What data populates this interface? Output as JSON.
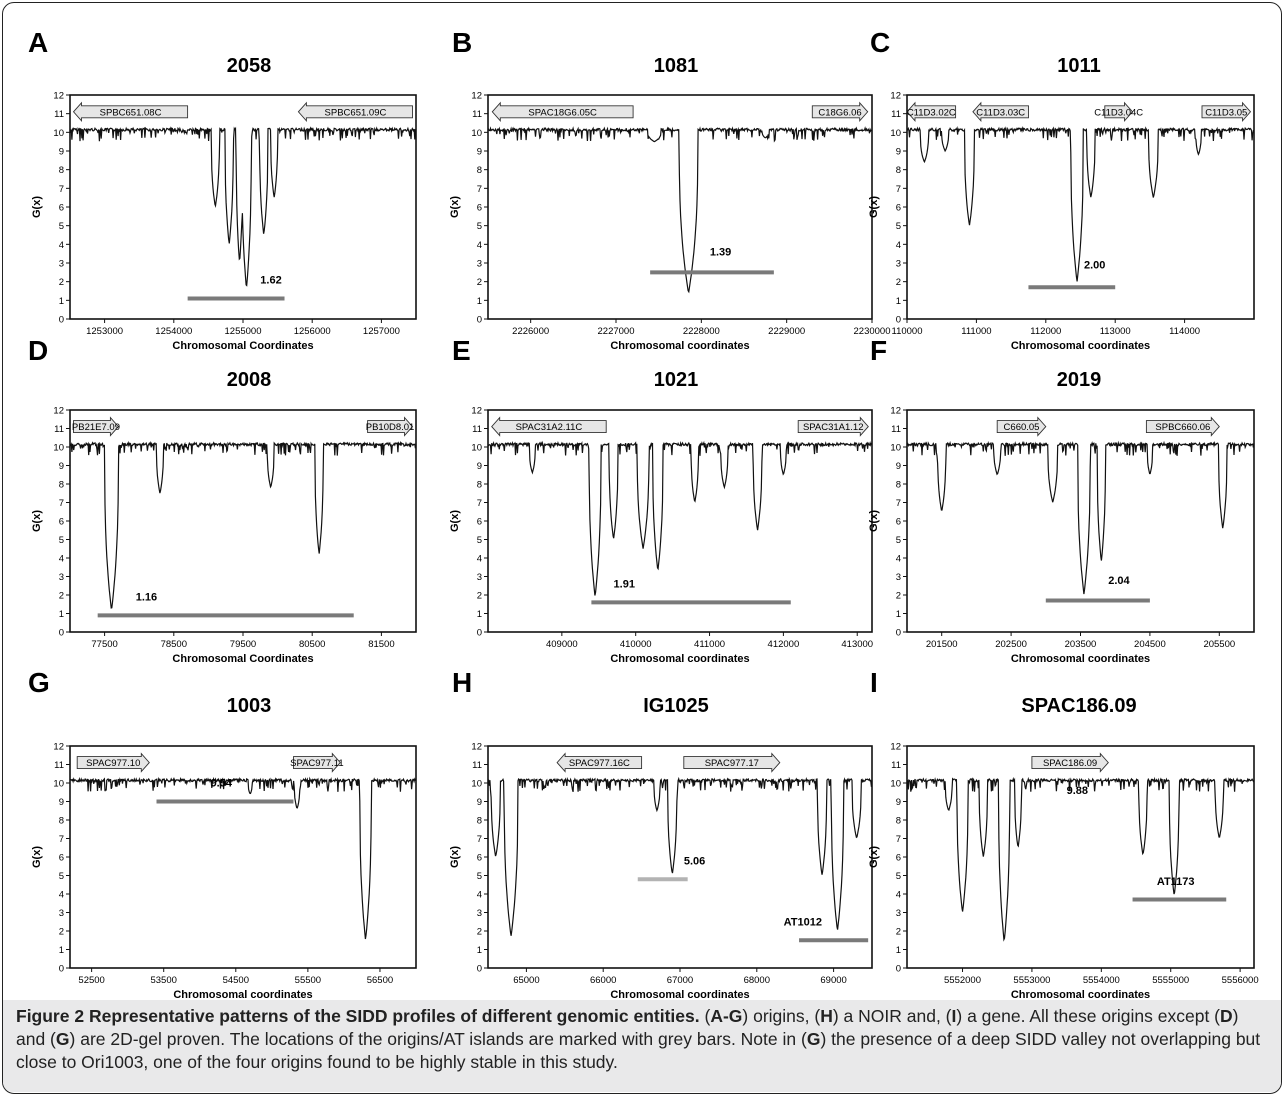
{
  "caption": {
    "label": "Figure 2",
    "title": "Representative patterns of the SIDD profiles of different genomic entities.",
    "segments": [
      {
        "t": " ("
      },
      {
        "t": "A-G",
        "b": true
      },
      {
        "t": ") origins, ("
      },
      {
        "t": "H",
        "b": true
      },
      {
        "t": ") a NOIR and, ("
      },
      {
        "t": "I",
        "b": true
      },
      {
        "t": ") a gene. All these origins except ("
      },
      {
        "t": "D",
        "b": true
      },
      {
        "t": ") and ("
      },
      {
        "t": "G",
        "b": true
      },
      {
        "t": ") are 2D-gel proven. The locations of the origins/AT islands are marked with grey bars. Note in ("
      },
      {
        "t": "G",
        "b": true
      },
      {
        "t": ") the presence of a deep SIDD valley not overlapping but close to Ori1003, one of the four origins found to be highly stable in this study."
      }
    ]
  },
  "colors": {
    "line": "#111111",
    "bar": "#7a7a7a",
    "bar_light": "#b3b3b3",
    "arrow_fill": "#e6e6e6",
    "caption_bg": "#e9e9ea"
  },
  "chart_data": [
    {
      "panel": "A",
      "title": "2058",
      "type": "line",
      "xlabel": "Chromosomal Coordinates",
      "ylabel": "G(x)",
      "xlim": [
        1252500,
        1257500
      ],
      "ylim": [
        0,
        12
      ],
      "xticks": [
        1253000,
        1254000,
        1255000,
        1256000,
        1257000
      ],
      "yticks": [
        0,
        1,
        2,
        3,
        4,
        5,
        6,
        7,
        8,
        9,
        10,
        11,
        12
      ],
      "baseline": 10.1,
      "dips": [
        [
          1254600,
          6.0,
          60
        ],
        [
          1254800,
          4.0,
          60
        ],
        [
          1254950,
          3.0,
          50
        ],
        [
          1255050,
          1.62,
          70
        ],
        [
          1255300,
          4.5,
          60
        ],
        [
          1255450,
          6.5,
          50
        ]
      ],
      "genes": [
        {
          "label": "SPBC651.08C",
          "start": 1254200,
          "end": 1252550,
          "y": 11.1
        },
        {
          "label": "SPBC651.09C",
          "start": 1257450,
          "end": 1255800,
          "y": 11.1
        }
      ],
      "bars": [
        {
          "start": 1254200,
          "end": 1255600,
          "y": 1.1,
          "label": "1.62",
          "label_x": 1255250,
          "label_y": 1.9
        }
      ]
    },
    {
      "panel": "B",
      "title": "1081",
      "type": "line",
      "xlabel": "Chromosomal coordinates",
      "ylabel": "G(x)",
      "xlim": [
        2225500,
        2230000
      ],
      "ylim": [
        0,
        12
      ],
      "xticks": [
        2226000,
        2227000,
        2228000,
        2229000,
        2230000
      ],
      "yticks": [
        0,
        1,
        2,
        3,
        4,
        5,
        6,
        7,
        8,
        9,
        10,
        11,
        12
      ],
      "baseline": 10.1,
      "dips": [
        [
          2227450,
          9.5,
          80
        ],
        [
          2227850,
          1.39,
          110
        ],
        [
          2228750,
          9.7,
          40
        ]
      ],
      "genes": [
        {
          "label": "SPAC18G6.05C",
          "start": 2227200,
          "end": 2225550,
          "y": 11.1
        },
        {
          "label": "C18G6.06",
          "start": 2229300,
          "end": 2229950,
          "y": 11.1
        }
      ],
      "bars": [
        {
          "start": 2227400,
          "end": 2228850,
          "y": 2.5,
          "label": "1.39",
          "label_x": 2228100,
          "label_y": 3.4
        }
      ]
    },
    {
      "panel": "C",
      "title": "1011",
      "type": "line",
      "xlabel": "Chromosomal coordinates",
      "ylabel": "G(x)",
      "xlim": [
        110000,
        115000
      ],
      "ylim": [
        0,
        12
      ],
      "xticks": [
        110000,
        111000,
        112000,
        113000,
        114000
      ],
      "yticks": [
        0,
        1,
        2,
        3,
        4,
        5,
        6,
        7,
        8,
        9,
        10,
        11,
        12
      ],
      "baseline": 10.1,
      "dips": [
        [
          110250,
          8.4,
          60
        ],
        [
          110550,
          9.0,
          50
        ],
        [
          110900,
          5.0,
          70
        ],
        [
          112450,
          2.0,
          90
        ],
        [
          112650,
          6.5,
          60
        ],
        [
          113550,
          6.5,
          70
        ],
        [
          114200,
          8.8,
          40
        ]
      ],
      "genes": [
        {
          "label": "C11D3.02C",
          "start": 110700,
          "end": 110000,
          "y": 11.1
        },
        {
          "label": "C11D3.03C",
          "start": 111750,
          "end": 110950,
          "y": 11.1
        },
        {
          "label": "C11D3.04C",
          "start": 112850,
          "end": 113250,
          "y": 11.1
        },
        {
          "label": "C11D3.05",
          "start": 114250,
          "end": 114950,
          "y": 11.1
        }
      ],
      "bars": [
        {
          "start": 111750,
          "end": 113000,
          "y": 1.7,
          "label": "2.00",
          "label_x": 112550,
          "label_y": 2.7
        }
      ]
    },
    {
      "panel": "D",
      "title": "2008",
      "type": "line",
      "xlabel": "Chromosomal Coordinates",
      "ylabel": "G(x)",
      "xlim": [
        77000,
        82000
      ],
      "ylim": [
        0,
        12
      ],
      "xticks": [
        77500,
        78500,
        79500,
        80500,
        81500
      ],
      "yticks": [
        0,
        1,
        2,
        3,
        4,
        5,
        6,
        7,
        8,
        9,
        10,
        11,
        12
      ],
      "baseline": 10.1,
      "dips": [
        [
          77600,
          1.16,
          100
        ],
        [
          78300,
          7.5,
          50
        ],
        [
          79900,
          7.8,
          50
        ],
        [
          80600,
          4.2,
          60
        ]
      ],
      "genes": [
        {
          "label": "PB21E7.09",
          "start": 77050,
          "end": 77700,
          "y": 11.1
        },
        {
          "label": "PB10D8.01",
          "start": 81300,
          "end": 81950,
          "y": 11.1
        }
      ],
      "bars": [
        {
          "start": 77400,
          "end": 81100,
          "y": 0.9,
          "label": "1.16",
          "label_x": 77950,
          "label_y": 1.7
        }
      ]
    },
    {
      "panel": "E",
      "title": "1021",
      "type": "line",
      "xlabel": "Chromosomal coordinates",
      "ylabel": "G(x)",
      "xlim": [
        408000,
        413200
      ],
      "ylim": [
        0,
        12
      ],
      "xticks": [
        409000,
        410000,
        411000,
        412000,
        413000
      ],
      "yticks": [
        0,
        1,
        2,
        3,
        4,
        5,
        6,
        7,
        8,
        9,
        10,
        11,
        12
      ],
      "baseline": 10.1,
      "dips": [
        [
          408600,
          8.6,
          40
        ],
        [
          409450,
          1.91,
          80
        ],
        [
          409700,
          5.0,
          60
        ],
        [
          410100,
          4.5,
          80
        ],
        [
          410300,
          3.3,
          70
        ],
        [
          410800,
          7.0,
          50
        ],
        [
          411200,
          7.8,
          50
        ],
        [
          411650,
          5.5,
          60
        ],
        [
          412000,
          8.5,
          40
        ]
      ],
      "genes": [
        {
          "label": "SPAC31A2.11C",
          "start": 409600,
          "end": 408050,
          "y": 11.1
        },
        {
          "label": "SPAC31A1.12",
          "start": 412200,
          "end": 413150,
          "y": 11.1
        }
      ],
      "bars": [
        {
          "start": 409400,
          "end": 412100,
          "y": 1.6,
          "label": "1.91",
          "label_x": 409700,
          "label_y": 2.4
        }
      ]
    },
    {
      "panel": "F",
      "title": "2019",
      "type": "line",
      "xlabel": "Chromosomal coordinates",
      "ylabel": "G(x)",
      "xlim": [
        201000,
        206000
      ],
      "ylim": [
        0,
        12
      ],
      "xticks": [
        201500,
        202500,
        203500,
        204500,
        205500
      ],
      "yticks": [
        0,
        1,
        2,
        3,
        4,
        5,
        6,
        7,
        8,
        9,
        10,
        11,
        12
      ],
      "baseline": 10.1,
      "dips": [
        [
          201500,
          6.5,
          60
        ],
        [
          202300,
          8.5,
          50
        ],
        [
          203100,
          7.0,
          70
        ],
        [
          203550,
          2.04,
          90
        ],
        [
          203800,
          3.8,
          60
        ],
        [
          204500,
          8.5,
          40
        ],
        [
          205550,
          5.6,
          60
        ]
      ],
      "genes": [
        {
          "label": "C660.05",
          "start": 202300,
          "end": 203000,
          "y": 11.1
        },
        {
          "label": "SPBC660.06",
          "start": 204450,
          "end": 205500,
          "y": 11.1
        }
      ],
      "bars": [
        {
          "start": 203000,
          "end": 204500,
          "y": 1.7,
          "label": "2.04",
          "label_x": 203900,
          "label_y": 2.6
        }
      ]
    },
    {
      "panel": "G",
      "title": "1003",
      "type": "line",
      "xlabel": "Chromosomal coordinates",
      "ylabel": "G(x)",
      "xlim": [
        52200,
        57000
      ],
      "ylim": [
        0,
        12
      ],
      "xticks": [
        52500,
        53500,
        54500,
        55500,
        56500
      ],
      "yticks": [
        0,
        1,
        2,
        3,
        4,
        5,
        6,
        7,
        8,
        9,
        10,
        11,
        12
      ],
      "baseline": 10.1,
      "dips": [
        [
          54700,
          9.4,
          30
        ],
        [
          55350,
          8.6,
          40
        ],
        [
          56300,
          1.5,
          80
        ]
      ],
      "genes": [
        {
          "label": "SPAC977.10",
          "start": 52300,
          "end": 53300,
          "y": 11.1
        },
        {
          "label": "SPAC977.11",
          "start": 55300,
          "end": 55950,
          "y": 11.1
        }
      ],
      "bars": [
        {
          "start": 53400,
          "end": 55300,
          "y": 9.0,
          "label": "9.54",
          "label_x": 54150,
          "label_y": 9.8
        }
      ]
    },
    {
      "panel": "H",
      "title": "IG1025",
      "type": "line",
      "xlabel": "Chromosomal coordinates",
      "ylabel": "G(x)",
      "xlim": [
        64500,
        69500
      ],
      "ylim": [
        0,
        12
      ],
      "xticks": [
        65000,
        66000,
        67000,
        68000,
        69000
      ],
      "yticks": [
        0,
        1,
        2,
        3,
        4,
        5,
        6,
        7,
        8,
        9,
        10,
        11,
        12
      ],
      "baseline": 10.1,
      "dips": [
        [
          64600,
          6.0,
          60
        ],
        [
          64800,
          1.7,
          90
        ],
        [
          66700,
          8.5,
          40
        ],
        [
          66900,
          5.06,
          60
        ],
        [
          68850,
          5.0,
          60
        ],
        [
          69050,
          2.0,
          80
        ],
        [
          69300,
          7.0,
          60
        ]
      ],
      "genes": [
        {
          "label": "SPAC977.16C",
          "start": 66500,
          "end": 65400,
          "y": 11.1
        },
        {
          "label": "SPAC977.17",
          "start": 67050,
          "end": 68300,
          "y": 11.1
        }
      ],
      "bars": [
        {
          "start": 66450,
          "end": 67100,
          "y": 4.8,
          "label": "5.06",
          "label_x": 67050,
          "label_y": 5.6,
          "light": true
        },
        {
          "start": 68550,
          "end": 69450,
          "y": 1.5,
          "label": "AT1012",
          "label_x": 68350,
          "label_y": 2.3
        }
      ]
    },
    {
      "panel": "I",
      "title": "SPAC186.09",
      "type": "line",
      "xlabel": "Chromosomal coordinates",
      "ylabel": "G(x)",
      "xlim": [
        5551200,
        5556200
      ],
      "ylim": [
        0,
        12
      ],
      "xticks": [
        5552000,
        5553000,
        5554000,
        5555000,
        5556000
      ],
      "yticks": [
        0,
        1,
        2,
        3,
        4,
        5,
        6,
        7,
        8,
        9,
        10,
        11,
        12
      ],
      "baseline": 10.1,
      "dips": [
        [
          5551800,
          8.5,
          50
        ],
        [
          5552000,
          3.0,
          80
        ],
        [
          5552300,
          6.0,
          60
        ],
        [
          5552600,
          1.4,
          80
        ],
        [
          5552800,
          6.5,
          50
        ],
        [
          5554600,
          6.1,
          60
        ],
        [
          5555050,
          3.9,
          70
        ],
        [
          5555700,
          7.0,
          60
        ]
      ],
      "genes": [
        {
          "label": "SPAC186.09",
          "start": 5553000,
          "end": 5554100,
          "y": 11.1
        }
      ],
      "bars": [
        {
          "start": 5554450,
          "end": 5555800,
          "y": 3.7,
          "label": "AT1173",
          "label_x": 5554800,
          "label_y": 4.5
        }
      ],
      "notes": [
        {
          "text": "9.88",
          "x": 5553500,
          "y": 9.4
        }
      ]
    }
  ]
}
